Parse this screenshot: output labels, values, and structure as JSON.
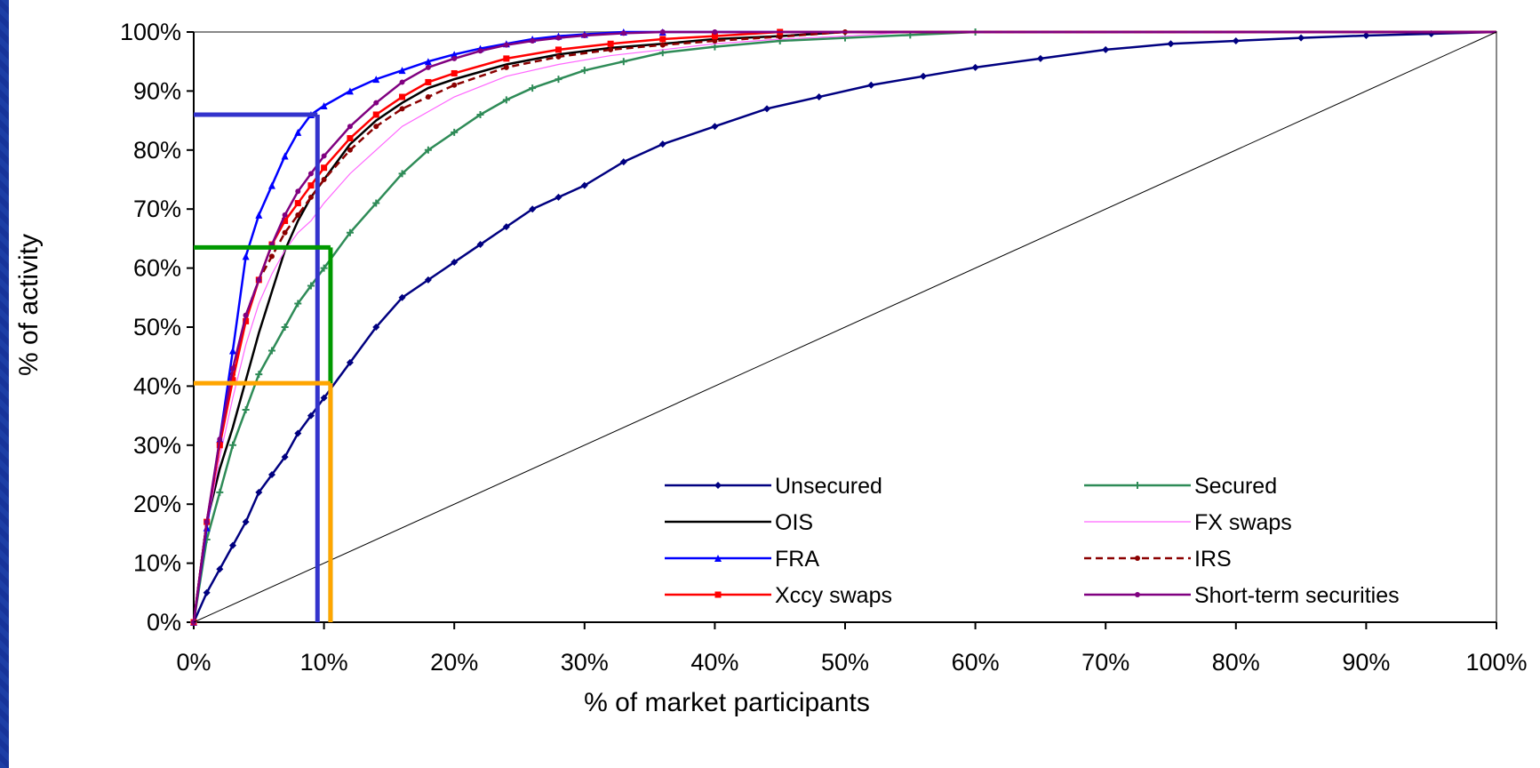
{
  "chart_data": {
    "type": "line",
    "title": "",
    "xlabel": "% of market participants",
    "ylabel": "% of activity",
    "xlim": [
      0,
      100
    ],
    "ylim": [
      0,
      100
    ],
    "x_ticks": [
      "0%",
      "10%",
      "20%",
      "30%",
      "40%",
      "50%",
      "60%",
      "70%",
      "80%",
      "90%",
      "100%"
    ],
    "y_ticks": [
      "0%",
      "10%",
      "20%",
      "30%",
      "40%",
      "50%",
      "60%",
      "70%",
      "80%",
      "90%",
      "100%"
    ],
    "grid": false,
    "legend_position": "lower-right, two columns",
    "series": [
      {
        "name": "Unsecured",
        "color": "#000080",
        "marker": "diamond",
        "dash": false,
        "x": [
          0,
          1,
          2,
          3,
          4,
          5,
          6,
          7,
          8,
          9,
          10,
          12,
          14,
          16,
          18,
          20,
          22,
          24,
          26,
          28,
          30,
          33,
          36,
          40,
          44,
          48,
          52,
          56,
          60,
          65,
          70,
          75,
          80,
          85,
          90,
          95,
          100
        ],
        "y": [
          0,
          5,
          9,
          13,
          17,
          22,
          25,
          28,
          32,
          35,
          38,
          44,
          50,
          55,
          58,
          61,
          64,
          67,
          70,
          72,
          74,
          78,
          81,
          84,
          87,
          89,
          91,
          92.5,
          94,
          95.5,
          97,
          98,
          98.5,
          99,
          99.4,
          99.7,
          100
        ]
      },
      {
        "name": "Secured",
        "color": "#2e8b57",
        "marker": "plus",
        "dash": false,
        "x": [
          0,
          1,
          2,
          3,
          4,
          5,
          6,
          7,
          8,
          9,
          10,
          12,
          14,
          16,
          18,
          20,
          22,
          24,
          26,
          28,
          30,
          33,
          36,
          40,
          45,
          50,
          55,
          60,
          100
        ],
        "y": [
          0,
          14,
          22,
          30,
          36,
          42,
          46,
          50,
          54,
          57,
          60,
          66,
          71,
          76,
          80,
          83,
          86,
          88.5,
          90.5,
          92,
          93.5,
          95,
          96.5,
          97.5,
          98.5,
          99,
          99.5,
          100,
          100
        ]
      },
      {
        "name": "OIS",
        "color": "#000000",
        "marker": "none",
        "dash": false,
        "x": [
          0,
          1,
          2,
          3,
          4,
          5,
          6,
          7,
          8,
          9,
          10,
          12,
          14,
          16,
          18,
          20,
          24,
          28,
          32,
          36,
          40,
          45,
          50,
          100
        ],
        "y": [
          0,
          17,
          26,
          33,
          41,
          49,
          56,
          63,
          68,
          72,
          75,
          81,
          85,
          88,
          90.5,
          92,
          94.5,
          96.2,
          97.3,
          98,
          98.8,
          99.3,
          100,
          100
        ]
      },
      {
        "name": "FX swaps",
        "color": "#ff66ff",
        "marker": "none",
        "dash": false,
        "x": [
          0,
          1,
          2,
          3,
          4,
          5,
          6,
          7,
          8,
          9,
          10,
          12,
          14,
          16,
          18,
          20,
          24,
          28,
          32,
          36,
          40,
          45,
          50,
          55,
          100
        ],
        "y": [
          0,
          16,
          28,
          38,
          47,
          54,
          59,
          63,
          66,
          68,
          71,
          76,
          80,
          84,
          86.5,
          89,
          92.5,
          94.5,
          96,
          97,
          98,
          98.8,
          99.3,
          100,
          100
        ]
      },
      {
        "name": "FRA",
        "color": "#0000ff",
        "marker": "triangle",
        "dash": false,
        "x": [
          0,
          1,
          2,
          3,
          4,
          5,
          6,
          7,
          8,
          9,
          10,
          12,
          14,
          16,
          18,
          20,
          22,
          24,
          26,
          28,
          30,
          33,
          36,
          100
        ],
        "y": [
          0,
          16,
          31,
          46,
          62,
          69,
          74,
          79,
          83,
          86,
          87.5,
          90,
          92,
          93.5,
          95,
          96.2,
          97.2,
          98,
          98.8,
          99.3,
          99.6,
          100,
          100,
          100
        ]
      },
      {
        "name": "IRS",
        "color": "#8b0000",
        "marker": "dot",
        "dash": true,
        "x": [
          0,
          1,
          2,
          3,
          4,
          5,
          6,
          7,
          8,
          9,
          10,
          12,
          14,
          16,
          18,
          20,
          24,
          28,
          32,
          36,
          40,
          45,
          50,
          100
        ],
        "y": [
          0,
          17,
          30,
          42,
          52,
          58,
          62,
          66,
          69,
          72,
          75,
          80,
          84,
          87,
          89,
          91,
          94,
          95.8,
          97,
          97.8,
          98.5,
          99.2,
          100,
          100
        ]
      },
      {
        "name": "Xccy swaps",
        "color": "#ff0000",
        "marker": "square",
        "dash": false,
        "x": [
          0,
          1,
          2,
          3,
          4,
          5,
          6,
          7,
          8,
          9,
          10,
          12,
          14,
          16,
          18,
          20,
          24,
          28,
          32,
          36,
          40,
          45,
          100
        ],
        "y": [
          0,
          17,
          30,
          41,
          51,
          58,
          64,
          68,
          71,
          74,
          77,
          82,
          86,
          89,
          91.5,
          93,
          95.5,
          97,
          98,
          98.8,
          99.3,
          100,
          100
        ]
      },
      {
        "name": "Short-term securities",
        "color": "#800080",
        "marker": "dot",
        "dash": false,
        "x": [
          0,
          1,
          2,
          3,
          4,
          5,
          6,
          7,
          8,
          9,
          10,
          12,
          14,
          16,
          18,
          20,
          22,
          24,
          26,
          28,
          30,
          33,
          36,
          40,
          100
        ],
        "y": [
          0,
          17,
          31,
          43,
          52,
          58,
          64,
          69,
          73,
          76,
          79,
          84,
          88,
          91.5,
          94,
          95.5,
          96.8,
          97.8,
          98.5,
          99,
          99.4,
          99.8,
          100,
          100,
          100
        ]
      },
      {
        "name": "",
        "color": "#000000",
        "marker": "none",
        "dash": false,
        "thin": true,
        "x": [
          0,
          100
        ],
        "y": [
          0,
          100
        ]
      }
    ],
    "reference_lines": [
      {
        "color": "#3333cc",
        "x": 9.5,
        "y": 86
      },
      {
        "color": "#009900",
        "x": 10.5,
        "y": 63.5
      },
      {
        "color": "#ffa500",
        "x": 10.5,
        "y": 40.5
      }
    ]
  }
}
